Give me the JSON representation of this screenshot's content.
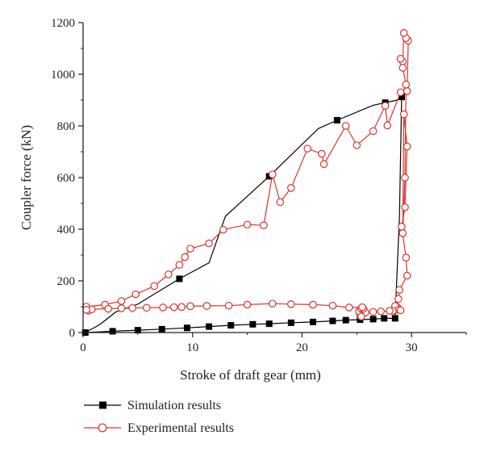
{
  "chart_data": {
    "type": "line",
    "xlabel": "Stroke of draft gear (mm)",
    "ylabel": "Coupler force (kN)",
    "xlim": [
      0,
      35
    ],
    "ylim": [
      0,
      1200
    ],
    "xticks": [
      0,
      10,
      20,
      30
    ],
    "yticks": [
      0,
      200,
      400,
      600,
      800,
      1000,
      1200
    ],
    "grid": false,
    "legend": "bottom",
    "series": [
      {
        "name": "Simulation results",
        "color": "#000000",
        "marker": "square",
        "x": [
          0.2,
          1.5,
          3.0,
          5.0,
          8.8,
          11.5,
          13.0,
          17.0,
          21.5,
          23.2,
          26.5,
          28.7,
          29.1,
          28.9,
          28.5,
          27.5,
          26.5,
          25.3,
          24.0,
          22.8,
          21.0,
          19.0,
          17.0,
          15.5,
          13.5,
          11.5,
          9.5,
          7.2,
          5.0,
          2.7,
          0.2
        ],
        "y": [
          0,
          30,
          80,
          110,
          208,
          270,
          450,
          605,
          790,
          822,
          880,
          900,
          912,
          450,
          55,
          55,
          52,
          50,
          48,
          45,
          41,
          38,
          34,
          32,
          28,
          23,
          18,
          13,
          9,
          5,
          0
        ],
        "marker_x": [
          0.2,
          2.7,
          5.0,
          7.2,
          9.5,
          11.5,
          13.5,
          15.5,
          17.0,
          19.0,
          21.0,
          22.8,
          24.0,
          25.3,
          26.5,
          27.5,
          28.5,
          8.8,
          17.0,
          23.2,
          27.6,
          29.1
        ],
        "marker_y": [
          0,
          5,
          9,
          13,
          18,
          23,
          28,
          32,
          34,
          38,
          41,
          45,
          48,
          50,
          52,
          55,
          55,
          208,
          605,
          822,
          890,
          912
        ]
      },
      {
        "name": "Experimental results",
        "color": "#d9342b",
        "marker": "circle",
        "x": [
          0.5,
          0.3,
          2.0,
          3.5,
          4.8,
          6.5,
          7.8,
          8.8,
          9.3,
          9.8,
          11.5,
          12.8,
          15.0,
          16.5,
          17.3,
          18.0,
          19.0,
          20.5,
          21.8,
          22.0,
          24.0,
          25.0,
          26.5,
          27.6,
          27.8,
          29.0,
          29.6,
          29.7,
          29.5,
          29.3,
          29.2,
          29.0,
          29.2,
          29.5,
          29.4,
          29.2,
          29.3,
          29.6,
          29.4,
          29.1,
          29.5,
          29.6,
          28.9,
          28.8,
          28.6,
          28.7,
          28.5,
          28.8,
          29.0,
          28.3,
          28.0,
          27.2,
          26.5,
          25.8,
          25.3,
          25.2,
          25.4,
          25.6,
          25.4,
          25.5,
          24.3,
          22.8,
          21.0,
          19.0,
          17.3,
          15.0,
          13.3,
          11.3,
          9.8,
          9.0,
          8.3,
          7.3,
          5.8,
          4.5,
          3.5,
          2.3,
          0.8,
          0.3
        ],
        "y": [
          85,
          100,
          108,
          122,
          148,
          180,
          225,
          262,
          292,
          325,
          345,
          398,
          418,
          415,
          612,
          505,
          560,
          712,
          692,
          652,
          800,
          725,
          780,
          878,
          802,
          930,
          935,
          1130,
          1140,
          1160,
          1050,
          1060,
          1025,
          960,
          600,
          385,
          845,
          720,
          485,
          410,
          290,
          220,
          165,
          130,
          92,
          98,
          103,
          88,
          86,
          84,
          84,
          82,
          80,
          78,
          68,
          82,
          92,
          92,
          62,
          98,
          97,
          104,
          108,
          110,
          112,
          108,
          104,
          103,
          102,
          99,
          98,
          97,
          96,
          95,
          94,
          92,
          90,
          88
        ]
      }
    ]
  }
}
